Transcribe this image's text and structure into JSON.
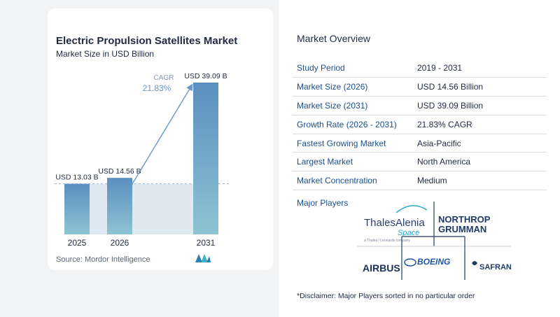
{
  "chart_data": {
    "type": "bar",
    "title": "Electric Propulsion Satellites Market",
    "subtitle": "Market Size in USD Billion",
    "categories": [
      "2025",
      "2026",
      "2031"
    ],
    "values": [
      13.03,
      14.56,
      39.09
    ],
    "value_labels": [
      "USD 13.03 B",
      "USD 14.56 B",
      "USD 39.09 B"
    ],
    "cagr_label": "CAGR",
    "cagr_value": "21.83%",
    "colors": {
      "bar_top": "#5b8fbf",
      "bar_bottom": "#8ebfd4",
      "shade": "#dfe9f2",
      "arrow": "#6a96c4",
      "dashed": "#9fb3c8"
    },
    "ylim": [
      0,
      39.09
    ]
  },
  "source": "Source: Mordor Intelligence",
  "overview": {
    "title": "Market Overview",
    "rows": [
      {
        "label": "Study Period",
        "value": "2019 - 2031"
      },
      {
        "label": "Market Size (2026)",
        "value": "USD 14.56 Billion"
      },
      {
        "label": "Market Size (2031)",
        "value": "USD 39.09 Billion"
      },
      {
        "label": "Growth Rate (2026 - 2031)",
        "value": "21.83% CAGR"
      },
      {
        "label": "Fastest Growing Market",
        "value": "Asia-Pacific"
      },
      {
        "label": "Largest Market",
        "value": "North America"
      },
      {
        "label": "Market Concentration",
        "value": "Medium"
      }
    ]
  },
  "players": {
    "title": "Major Players",
    "logos": {
      "thales_main": "ThalesAlenia",
      "thales_sub": "Space",
      "thales_tag": "a Thales / Leonardo company",
      "northrop_1": "NORTHROP",
      "northrop_2": "GRUMMAN",
      "airbus": "AIRBUS",
      "boeing": "BOEING",
      "safran": "SAFRAN"
    }
  },
  "disclaimer": "*Disclaimer: Major Players sorted in no particular order"
}
